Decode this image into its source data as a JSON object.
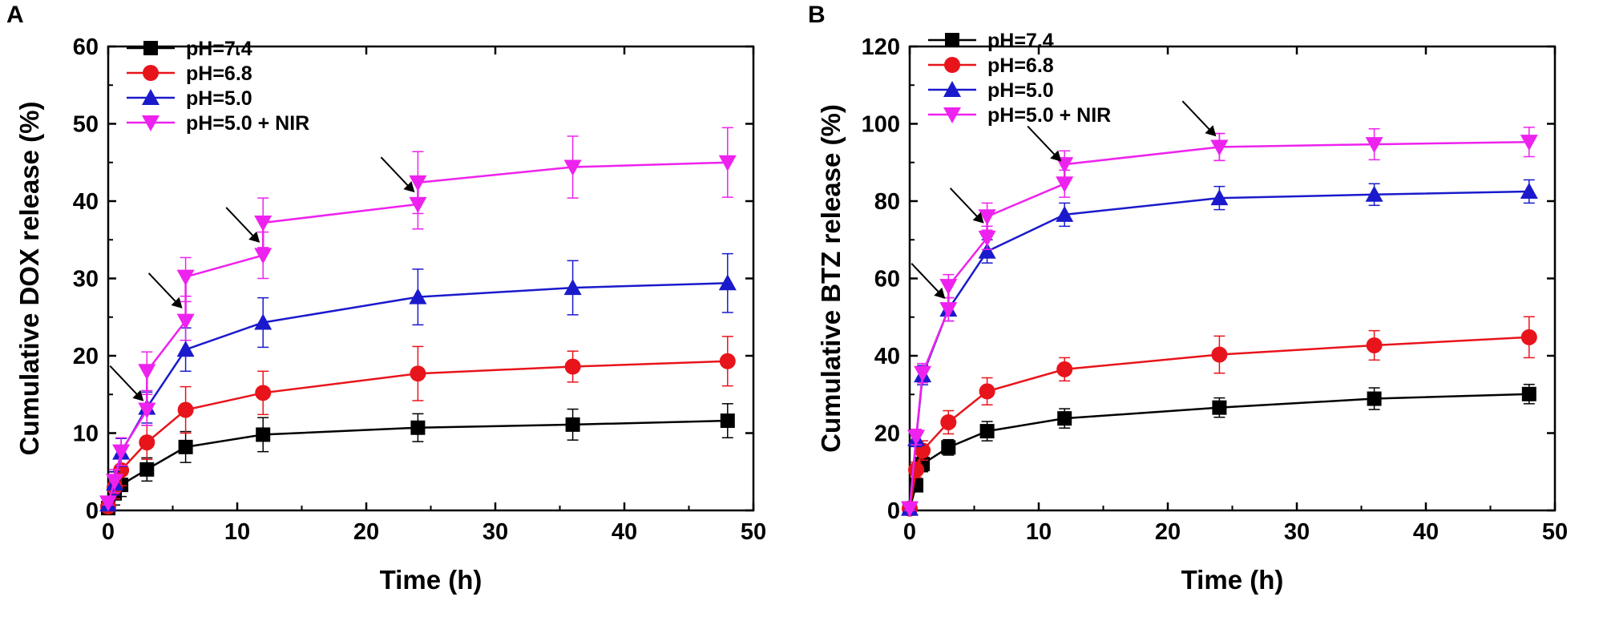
{
  "chart_data": [
    {
      "type": "line",
      "panel_label": "A",
      "xlabel": "Time (h)",
      "ylabel": "Cumulative DOX release (%)",
      "xlim": [
        0,
        50
      ],
      "ylim": [
        0,
        60
      ],
      "xticks": [
        0,
        10,
        20,
        30,
        40,
        50
      ],
      "yticks": [
        0,
        10,
        20,
        30,
        40,
        50,
        60
      ],
      "legend_position": "top-left",
      "x": [
        0,
        0.5,
        1,
        3,
        6,
        12,
        24,
        36,
        48
      ],
      "series": [
        {
          "name": "pH=7.4",
          "color": "#000000",
          "marker": "square",
          "values": [
            0.3,
            2.2,
            3.3,
            5.3,
            8.2,
            9.8,
            10.7,
            11.1,
            11.6
          ],
          "errors": [
            0.3,
            1.5,
            1.5,
            1.5,
            2.0,
            2.2,
            1.8,
            2.0,
            2.2
          ]
        },
        {
          "name": "pH=6.8",
          "color": "#e8141b",
          "marker": "circle",
          "values": [
            0.5,
            3.0,
            5.2,
            8.8,
            13.0,
            15.2,
            17.7,
            18.6,
            19.3
          ],
          "errors": [
            0.3,
            1.5,
            2.0,
            2.2,
            3.0,
            2.8,
            3.5,
            2.0,
            3.2
          ]
        },
        {
          "name": "pH=5.0",
          "color": "#1a1acc",
          "marker": "triangle-up",
          "values": [
            0.8,
            3.5,
            7.5,
            13.3,
            20.8,
            24.3,
            27.6,
            28.8,
            29.4
          ],
          "errors": [
            0.3,
            1.5,
            1.8,
            2.0,
            2.8,
            3.2,
            3.6,
            3.5,
            3.8
          ]
        },
        {
          "name": "pH=5.0 + NIR",
          "color": "#ee22ee",
          "marker": "triangle-down",
          "values": [
            1.0,
            3.8,
            7.6,
            13.0,
            24.5,
            33.0,
            39.6,
            44.4,
            45.0
          ],
          "errors": [
            0.3,
            1.5,
            1.8,
            2.0,
            2.5,
            3.0,
            3.2,
            4.0,
            4.5
          ],
          "nir_on": [
            3,
            6,
            12,
            24
          ],
          "nir_peaks": [
            18.0,
            30.2,
            37.2,
            42.4
          ],
          "nir_peak_errors": [
            2.5,
            2.5,
            3.2,
            4.0
          ]
        }
      ],
      "annotations": [
        {
          "type": "arrow",
          "x": 3,
          "y": 13.5
        },
        {
          "type": "arrow",
          "x": 6,
          "y": 25.5
        },
        {
          "type": "arrow",
          "x": 12,
          "y": 34.0
        },
        {
          "type": "arrow",
          "x": 24,
          "y": 40.5
        }
      ]
    },
    {
      "type": "line",
      "panel_label": "B",
      "xlabel": "Time (h)",
      "ylabel": "Cumulative BTZ release (%)",
      "xlim": [
        0,
        50
      ],
      "ylim": [
        0,
        120
      ],
      "xticks": [
        0,
        10,
        20,
        30,
        40,
        50
      ],
      "yticks": [
        0,
        20,
        40,
        60,
        80,
        100,
        120
      ],
      "legend_position": "top-left",
      "x": [
        0,
        0.5,
        1,
        3,
        6,
        12,
        24,
        36,
        48
      ],
      "series": [
        {
          "name": "pH=7.4",
          "color": "#000000",
          "marker": "square",
          "values": [
            0.5,
            6.5,
            12.0,
            16.3,
            20.5,
            23.8,
            26.6,
            28.9,
            30.1
          ],
          "errors": [
            0.5,
            1.5,
            2.0,
            2.0,
            2.5,
            2.5,
            2.5,
            2.8,
            2.5
          ]
        },
        {
          "name": "pH=6.8",
          "color": "#e8141b",
          "marker": "circle",
          "values": [
            0.5,
            10.5,
            15.5,
            22.8,
            30.8,
            36.5,
            40.3,
            42.7,
            44.8
          ],
          "errors": [
            0.5,
            2.0,
            2.5,
            3.0,
            3.5,
            3.0,
            4.8,
            3.8,
            5.3
          ]
        },
        {
          "name": "pH=5.0",
          "color": "#1a1acc",
          "marker": "triangle-up",
          "values": [
            0.5,
            18.5,
            35.0,
            52.0,
            67.0,
            76.5,
            80.8,
            81.7,
            82.5
          ],
          "errors": [
            0.5,
            2.0,
            2.5,
            3.0,
            3.0,
            3.0,
            3.0,
            2.8,
            3.0
          ]
        },
        {
          "name": "pH=5.0 + NIR",
          "color": "#ee22ee",
          "marker": "triangle-down",
          "values": [
            0.5,
            19.0,
            35.5,
            52.0,
            70.5,
            84.5,
            94.0,
            94.7,
            95.3
          ],
          "errors": [
            0.5,
            2.0,
            2.5,
            3.0,
            3.0,
            3.5,
            3.5,
            4.0,
            3.8
          ],
          "nir_on": [
            3,
            6,
            12,
            24
          ],
          "nir_peaks": [
            58.0,
            76.0,
            89.5,
            94.0
          ],
          "nir_peak_errors": [
            3.0,
            3.5,
            3.5,
            3.5
          ]
        }
      ],
      "annotations": [
        {
          "type": "arrow",
          "x": 3,
          "y": 53.5
        },
        {
          "type": "arrow",
          "x": 6,
          "y": 73.0
        },
        {
          "type": "arrow",
          "x": 12,
          "y": 89.0
        },
        {
          "type": "arrow",
          "x": 24,
          "y": 95.5
        }
      ]
    }
  ]
}
